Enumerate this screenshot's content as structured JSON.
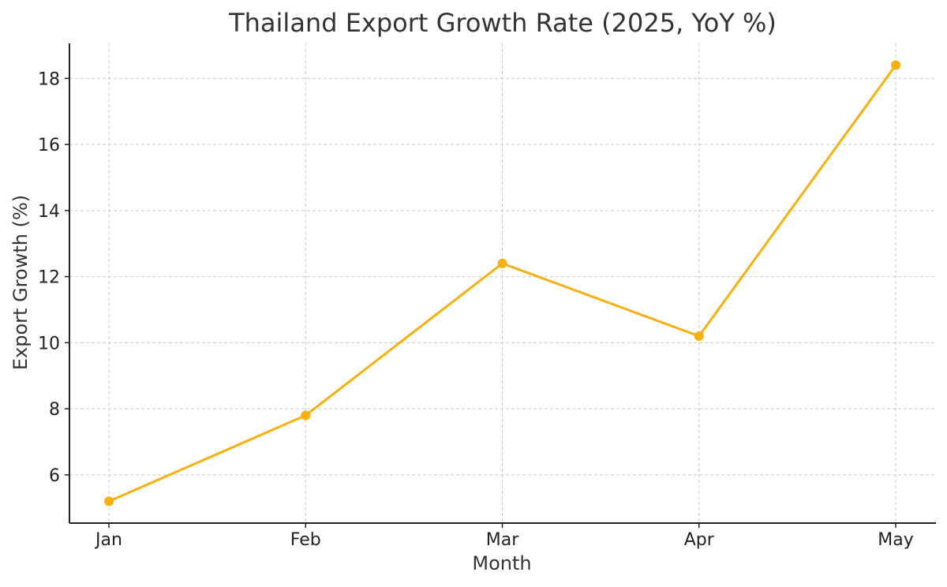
{
  "chart_data": {
    "type": "line",
    "title": "Thailand Export Growth Rate (2025, YoY %)",
    "xlabel": "Month",
    "ylabel": "Export Growth (%)",
    "categories": [
      "Jan",
      "Feb",
      "Mar",
      "Apr",
      "May"
    ],
    "series": [
      {
        "values": [
          5.2,
          7.8,
          12.4,
          10.2,
          18.4
        ],
        "color": "#f7b00f"
      }
    ],
    "yticks": [
      6,
      8,
      10,
      12,
      14,
      16,
      18
    ],
    "ylim": [
      4.54,
      19.06
    ],
    "grid": true,
    "legend": false
  }
}
